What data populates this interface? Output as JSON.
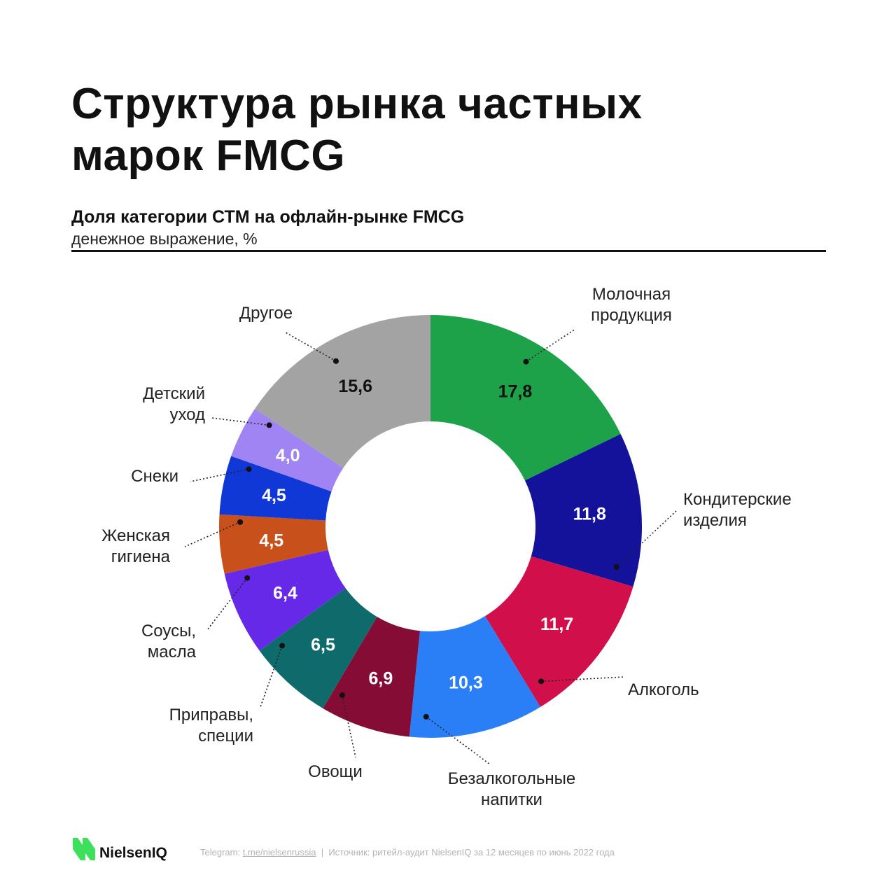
{
  "title_line1": "Структура рынка частных",
  "title_line2": "марок FMCG",
  "subtitle": "Доля категории СТМ на офлайн-рынке FMCG",
  "unit_label": "денежное выражение, %",
  "chart_data": {
    "type": "pie",
    "donut": true,
    "title": "Доля категории СТМ на офлайн-рынке FMCG",
    "subtitle": "денежное выражение, %",
    "slices": [
      {
        "label": [
          "Молочная",
          "продукция"
        ],
        "value": 17.8,
        "display": "17,8",
        "color": "#1da24a",
        "text_color": "#111111"
      },
      {
        "label": [
          "Кондитерские",
          "изделия"
        ],
        "value": 11.8,
        "display": "11,8",
        "color": "#14129a",
        "text_color": "#ffffff"
      },
      {
        "label": [
          "Алкоголь"
        ],
        "value": 11.7,
        "display": "11,7",
        "color": "#d10f4a",
        "text_color": "#ffffff"
      },
      {
        "label": [
          "Безалкогольные",
          "напитки"
        ],
        "value": 10.3,
        "display": "10,3",
        "color": "#2b7ff6",
        "text_color": "#ffffff"
      },
      {
        "label": [
          "Овощи"
        ],
        "value": 6.9,
        "display": "6,9",
        "color": "#850d35",
        "text_color": "#ffffff"
      },
      {
        "label": [
          "Приправы,",
          "специи"
        ],
        "value": 6.5,
        "display": "6,5",
        "color": "#0f6b6b",
        "text_color": "#ffffff"
      },
      {
        "label": [
          "Соусы,",
          "масла"
        ],
        "value": 6.4,
        "display": "6,4",
        "color": "#6629e8",
        "text_color": "#ffffff"
      },
      {
        "label": [
          "Женская",
          "гигиена"
        ],
        "value": 4.5,
        "display": "4,5",
        "color": "#c8501a",
        "text_color": "#ffffff"
      },
      {
        "label": [
          "Снеки"
        ],
        "value": 4.5,
        "display": "4,5",
        "color": "#1038d6",
        "text_color": "#ffffff"
      },
      {
        "label": [
          "Детский",
          "уход"
        ],
        "value": 4.0,
        "display": "4,0",
        "color": "#a084f4",
        "text_color": "#ffffff"
      },
      {
        "label": [
          "Другое"
        ],
        "value": 15.6,
        "display": "15,6",
        "color": "#a3a3a3",
        "text_color": "#111111"
      }
    ]
  },
  "footer": {
    "brand": "NielsenIQ",
    "brand_color": "#3ce05a",
    "telegram_prefix": "Telegram: ",
    "telegram_link": "t.me/nielsenrussia",
    "separator": "  |  ",
    "source": "Источник: ритейл-аудит NielsenIQ за 12 месяцев по июнь 2022 года"
  }
}
